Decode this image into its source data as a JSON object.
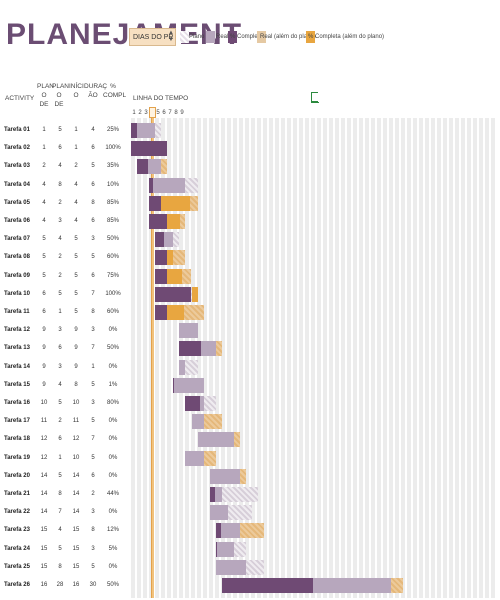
{
  "title": "PLANEJAMENT",
  "dias_label": "DIAS DO PR",
  "legend": [
    {
      "label": "Plano",
      "color": "#d9cfdc"
    },
    {
      "label": "Real",
      "color": "#b7a7bd"
    },
    {
      "label": "% Completa",
      "color": "#6f4a74"
    },
    {
      "label": "Real (além do plano)",
      "color": "#e5c9a3"
    },
    {
      "label": "% Completa (além do plano)",
      "color": "#e8a640"
    }
  ],
  "headers": {
    "activity": "ACTIVITY",
    "plan_start": "PLAN\nO DE",
    "plan_dur": "PLAN\nO DE",
    "real_start": "INÍCI\nO",
    "real_dur": "DURAÇ\nÃO",
    "pct": "%\nCOMPL",
    "timeline": "LINHA DO TEMPO"
  },
  "day_numbers": [
    "1",
    "2",
    "3",
    "4",
    "5",
    "6",
    "7",
    "8",
    "9"
  ],
  "tasks": [
    {
      "name": "Tarefa 01",
      "ps": "1",
      "pd": "5",
      "rs": "1",
      "rd": "4",
      "pct": "25%"
    },
    {
      "name": "Tarefa 02",
      "ps": "1",
      "pd": "6",
      "rs": "1",
      "rd": "6",
      "pct": "100%"
    },
    {
      "name": "Tarefa 03",
      "ps": "2",
      "pd": "4",
      "rs": "2",
      "rd": "5",
      "pct": "35%"
    },
    {
      "name": "Tarefa 04",
      "ps": "4",
      "pd": "8",
      "rs": "4",
      "rd": "6",
      "pct": "10%"
    },
    {
      "name": "Tarefa 05",
      "ps": "4",
      "pd": "2",
      "rs": "4",
      "rd": "8",
      "pct": "85%"
    },
    {
      "name": "Tarefa 06",
      "ps": "4",
      "pd": "3",
      "rs": "4",
      "rd": "6",
      "pct": "85%"
    },
    {
      "name": "Tarefa 07",
      "ps": "5",
      "pd": "4",
      "rs": "5",
      "rd": "3",
      "pct": "50%"
    },
    {
      "name": "Tarefa 08",
      "ps": "5",
      "pd": "2",
      "rs": "5",
      "rd": "5",
      "pct": "60%"
    },
    {
      "name": "Tarefa 09",
      "ps": "5",
      "pd": "2",
      "rs": "5",
      "rd": "6",
      "pct": "75%"
    },
    {
      "name": "Tarefa 10",
      "ps": "6",
      "pd": "5",
      "rs": "5",
      "rd": "7",
      "pct": "100%"
    },
    {
      "name": "Tarefa 11",
      "ps": "6",
      "pd": "1",
      "rs": "5",
      "rd": "8",
      "pct": "60%"
    },
    {
      "name": "Tarefa 12",
      "ps": "9",
      "pd": "3",
      "rs": "9",
      "rd": "3",
      "pct": "0%"
    },
    {
      "name": "Tarefa 13",
      "ps": "9",
      "pd": "6",
      "rs": "9",
      "rd": "7",
      "pct": "50%"
    },
    {
      "name": "Tarefa 14",
      "ps": "9",
      "pd": "3",
      "rs": "9",
      "rd": "1",
      "pct": "0%"
    },
    {
      "name": "Tarefa 15",
      "ps": "9",
      "pd": "4",
      "rs": "8",
      "rd": "5",
      "pct": "1%"
    },
    {
      "name": "Tarefa 16",
      "ps": "10",
      "pd": "5",
      "rs": "10",
      "rd": "3",
      "pct": "80%"
    },
    {
      "name": "Tarefa 17",
      "ps": "11",
      "pd": "2",
      "rs": "11",
      "rd": "5",
      "pct": "0%"
    },
    {
      "name": "Tarefa 18",
      "ps": "12",
      "pd": "6",
      "rs": "12",
      "rd": "7",
      "pct": "0%"
    },
    {
      "name": "Tarefa 19",
      "ps": "12",
      "pd": "1",
      "rs": "10",
      "rd": "5",
      "pct": "0%"
    },
    {
      "name": "Tarefa 20",
      "ps": "14",
      "pd": "5",
      "rs": "14",
      "rd": "6",
      "pct": "0%"
    },
    {
      "name": "Tarefa 21",
      "ps": "14",
      "pd": "8",
      "rs": "14",
      "rd": "2",
      "pct": "44%"
    },
    {
      "name": "Tarefa 22",
      "ps": "14",
      "pd": "7",
      "rs": "14",
      "rd": "3",
      "pct": "0%"
    },
    {
      "name": "Tarefa 23",
      "ps": "15",
      "pd": "4",
      "rs": "15",
      "rd": "8",
      "pct": "12%"
    },
    {
      "name": "Tarefa 24",
      "ps": "15",
      "pd": "5",
      "rs": "15",
      "rd": "3",
      "pct": "5%"
    },
    {
      "name": "Tarefa 25",
      "ps": "15",
      "pd": "8",
      "rs": "15",
      "rd": "5",
      "pct": "0%"
    },
    {
      "name": "Tarefa 26",
      "ps": "16",
      "pd": "28",
      "rs": "16",
      "rd": "30",
      "pct": "50%"
    }
  ]
}
